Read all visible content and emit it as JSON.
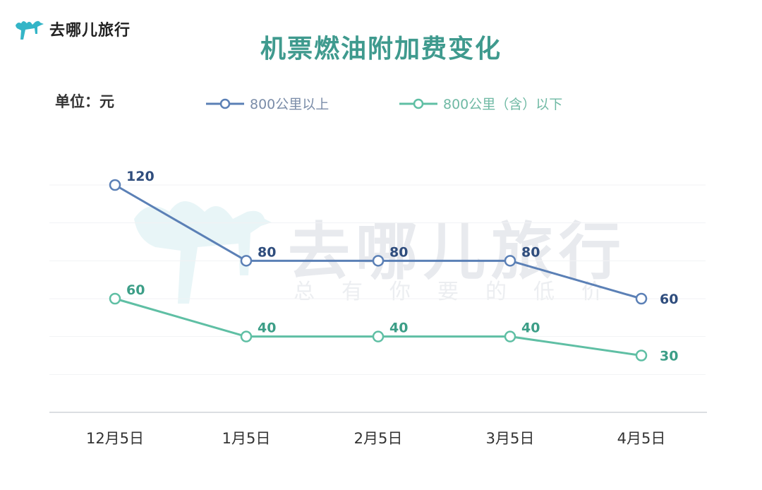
{
  "brand": {
    "name": "去哪儿旅行"
  },
  "watermark": {
    "main": "去哪儿旅行",
    "sub": "总有你要的低价"
  },
  "chart_data": {
    "type": "line",
    "title": "机票燃油附加费变化",
    "unit_label": "单位：元",
    "categories": [
      "12月5日",
      "1月5日",
      "2月5日",
      "3月5日",
      "4月5日"
    ],
    "series": [
      {
        "name": "800公里以上",
        "values": [
          120,
          80,
          80,
          80,
          60
        ],
        "color": "#5b80b6"
      },
      {
        "name": "800公里（含）以下",
        "values": [
          60,
          40,
          40,
          40,
          30
        ],
        "color": "#5fbfa4"
      }
    ],
    "ylim": [
      0,
      140
    ],
    "grid": true,
    "legend": "top",
    "xlabel": "",
    "ylabel": ""
  }
}
